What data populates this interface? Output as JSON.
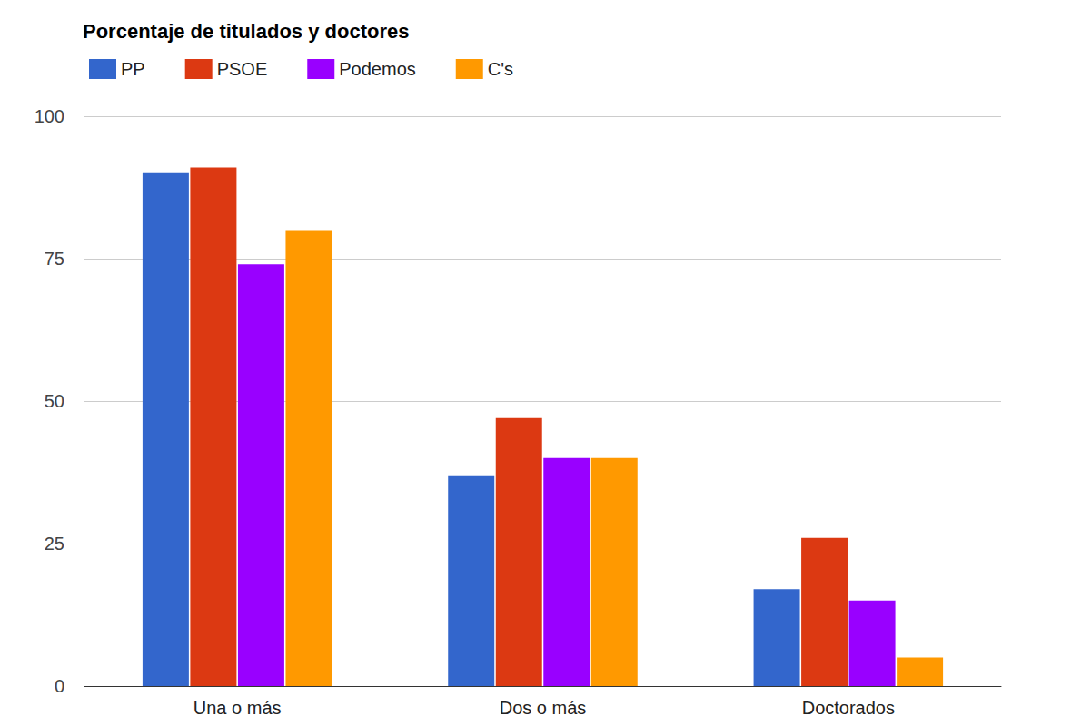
{
  "chart_data": {
    "type": "bar",
    "title": "Porcentaje de titulados y doctores",
    "categories": [
      "Una o más",
      "Dos o más",
      "Doctorados"
    ],
    "series": [
      {
        "name": "PP",
        "color": "#3366cc",
        "values": [
          90,
          37,
          17
        ]
      },
      {
        "name": "PSOE",
        "color": "#dc3912",
        "values": [
          91,
          47,
          26
        ]
      },
      {
        "name": "Podemos",
        "color": "#9900ff",
        "values": [
          74,
          40,
          15
        ]
      },
      {
        "name": "C's",
        "color": "#ff9900",
        "values": [
          80,
          40,
          5
        ]
      }
    ],
    "ylim": [
      0,
      100
    ],
    "yticks": [
      0,
      25,
      50,
      75,
      100
    ],
    "grid": true,
    "legend": "top-left"
  }
}
